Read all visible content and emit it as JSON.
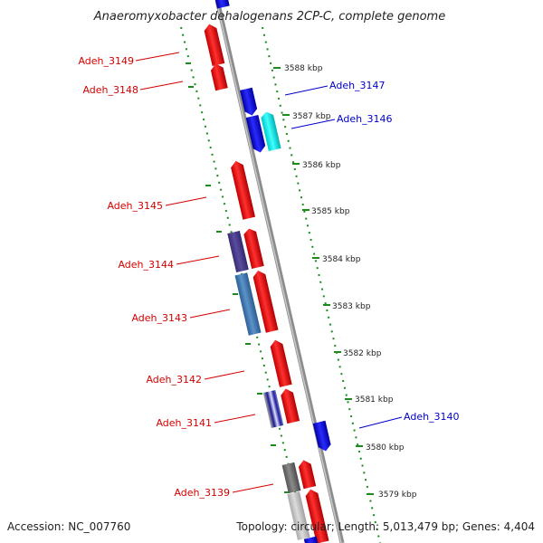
{
  "title": "Anaeromyxobacter dehalogenans 2CP-C, complete genome",
  "footer": {
    "accession": "Accession: NC_007760",
    "topology": "Topology: circular; Length: 5,013,479 bp; Genes: 4,404"
  },
  "colors": {
    "forward_gene": "#ff0000",
    "reverse_gene": "#0000ff",
    "backbone": "#8c8c8c",
    "ruler_dots": "#1a8c1a",
    "forward_label": "#d40000",
    "reverse_label": "#0000cc"
  },
  "ticks": [
    {
      "label": "3588 kbp"
    },
    {
      "label": "3587 kbp"
    },
    {
      "label": "3586 kbp"
    },
    {
      "label": "3585 kbp"
    },
    {
      "label": "3584 kbp"
    },
    {
      "label": "3583 kbp"
    },
    {
      "label": "3582 kbp"
    },
    {
      "label": "3581 kbp"
    },
    {
      "label": "3580 kbp"
    },
    {
      "label": "3579 kbp"
    }
  ],
  "genes_left": [
    {
      "label": "Adeh_3149"
    },
    {
      "label": "Adeh_3148"
    },
    {
      "label": "Adeh_3145"
    },
    {
      "label": "Adeh_3144"
    },
    {
      "label": "Adeh_3143"
    },
    {
      "label": "Adeh_3142"
    },
    {
      "label": "Adeh_3141"
    },
    {
      "label": "Adeh_3139"
    }
  ],
  "genes_right": [
    {
      "label": "Adeh_3147"
    },
    {
      "label": "Adeh_3146"
    },
    {
      "label": "Adeh_3140"
    }
  ]
}
